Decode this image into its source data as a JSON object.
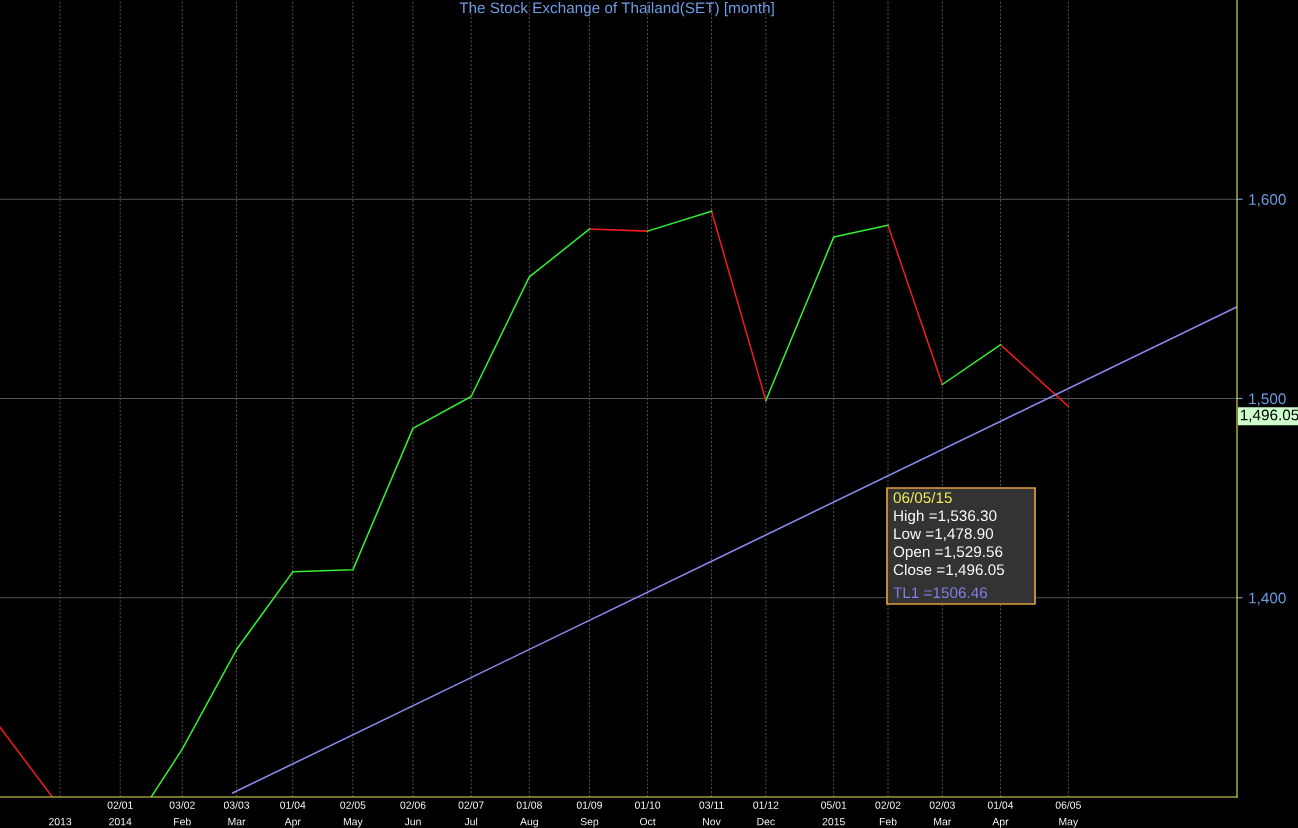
{
  "chart_data": {
    "type": "line",
    "title": "The Stock Exchange of Thailand(SET) [month]",
    "series": [
      {
        "x": [
          "2013-11-01",
          "2013-11-28",
          null,
          "2014-09-01",
          "2014-10-01",
          null,
          "2014-11-03",
          "2014-12-01",
          null,
          "2015-02-02",
          "2015-03-02",
          null,
          "2015-04-01",
          "2015-05-06"
        ],
        "values": [
          1335,
          1300,
          null,
          1585,
          1584,
          null,
          1594,
          1499,
          null,
          1587,
          1507,
          null,
          1527,
          1496.05
        ],
        "color": "#ee1c1c"
      },
      {
        "x": [
          "2014-01-18",
          "2014-02-03",
          "2014-03-03",
          "2014-04-01",
          "2014-05-02",
          "2014-06-02",
          "2014-07-02",
          "2014-08-01",
          "2014-09-01",
          null,
          "2014-10-01",
          "2014-11-03",
          null,
          "2014-12-01",
          "2015-01-05",
          "2015-02-02",
          null,
          "2015-03-02",
          "2015-04-01"
        ],
        "values": [
          1300,
          1324,
          1374,
          1413,
          1414,
          1485,
          1501,
          1561,
          1585,
          null,
          1584,
          1594,
          null,
          1499,
          1581,
          1587,
          null,
          1507,
          1527
        ],
        "color": "#33ee33"
      },
      {
        "type": "line",
        "x": [
          "2014-03-01",
          "2015-08-01"
        ],
        "values": [
          1302,
          1546
        ],
        "color": "#8c8cf0"
      }
    ],
    "xlim": [
      "2013-11-01",
      "2015-08-01"
    ],
    "ylim": [
      1300,
      1700
    ],
    "xticks": [
      {
        "value": "2013-12-02",
        "label": "\n2013"
      },
      {
        "value": "2014-01-02",
        "label": "02/01\n2014"
      },
      {
        "value": "2014-02-03",
        "label": "03/02\nFeb"
      },
      {
        "value": "2014-03-03",
        "label": "03/03\nMar"
      },
      {
        "value": "2014-04-01",
        "label": "01/04\nApr"
      },
      {
        "value": "2014-05-02",
        "label": "02/05\nMay"
      },
      {
        "value": "2014-06-02",
        "label": "02/06\nJun"
      },
      {
        "value": "2014-07-02",
        "label": "02/07\nJul"
      },
      {
        "value": "2014-08-01",
        "label": "01/08\nAug"
      },
      {
        "value": "2014-09-01",
        "label": "01/09\nSep"
      },
      {
        "value": "2014-10-01",
        "label": "01/10\nOct"
      },
      {
        "value": "2014-11-03",
        "label": "03/11\nNov"
      },
      {
        "value": "2014-12-01",
        "label": "01/12\nDec"
      },
      {
        "value": "2015-01-05",
        "label": "05/01\n2015"
      },
      {
        "value": "2015-02-02",
        "label": "02/02\nFeb"
      },
      {
        "value": "2015-03-02",
        "label": "02/03\nMar"
      },
      {
        "value": "2015-04-01",
        "label": "01/04\nApr"
      },
      {
        "value": "2015-05-06",
        "label": "06/05\nMay"
      }
    ],
    "yticks": [
      {
        "value": 1400,
        "label": "1,400"
      },
      {
        "value": 1500,
        "label": "1,500"
      },
      {
        "value": 1600,
        "label": "1,600"
      }
    ],
    "grid": true,
    "legend": false,
    "marker": "none",
    "line_style": "solid",
    "annotations": [
      "06/05/15",
      "High =1,536.30",
      "Low =1,478.90",
      "Open =1,529.56",
      "Close =1,496.05",
      "TL1 =1506.46",
      "1,496.05"
    ]
  }
}
